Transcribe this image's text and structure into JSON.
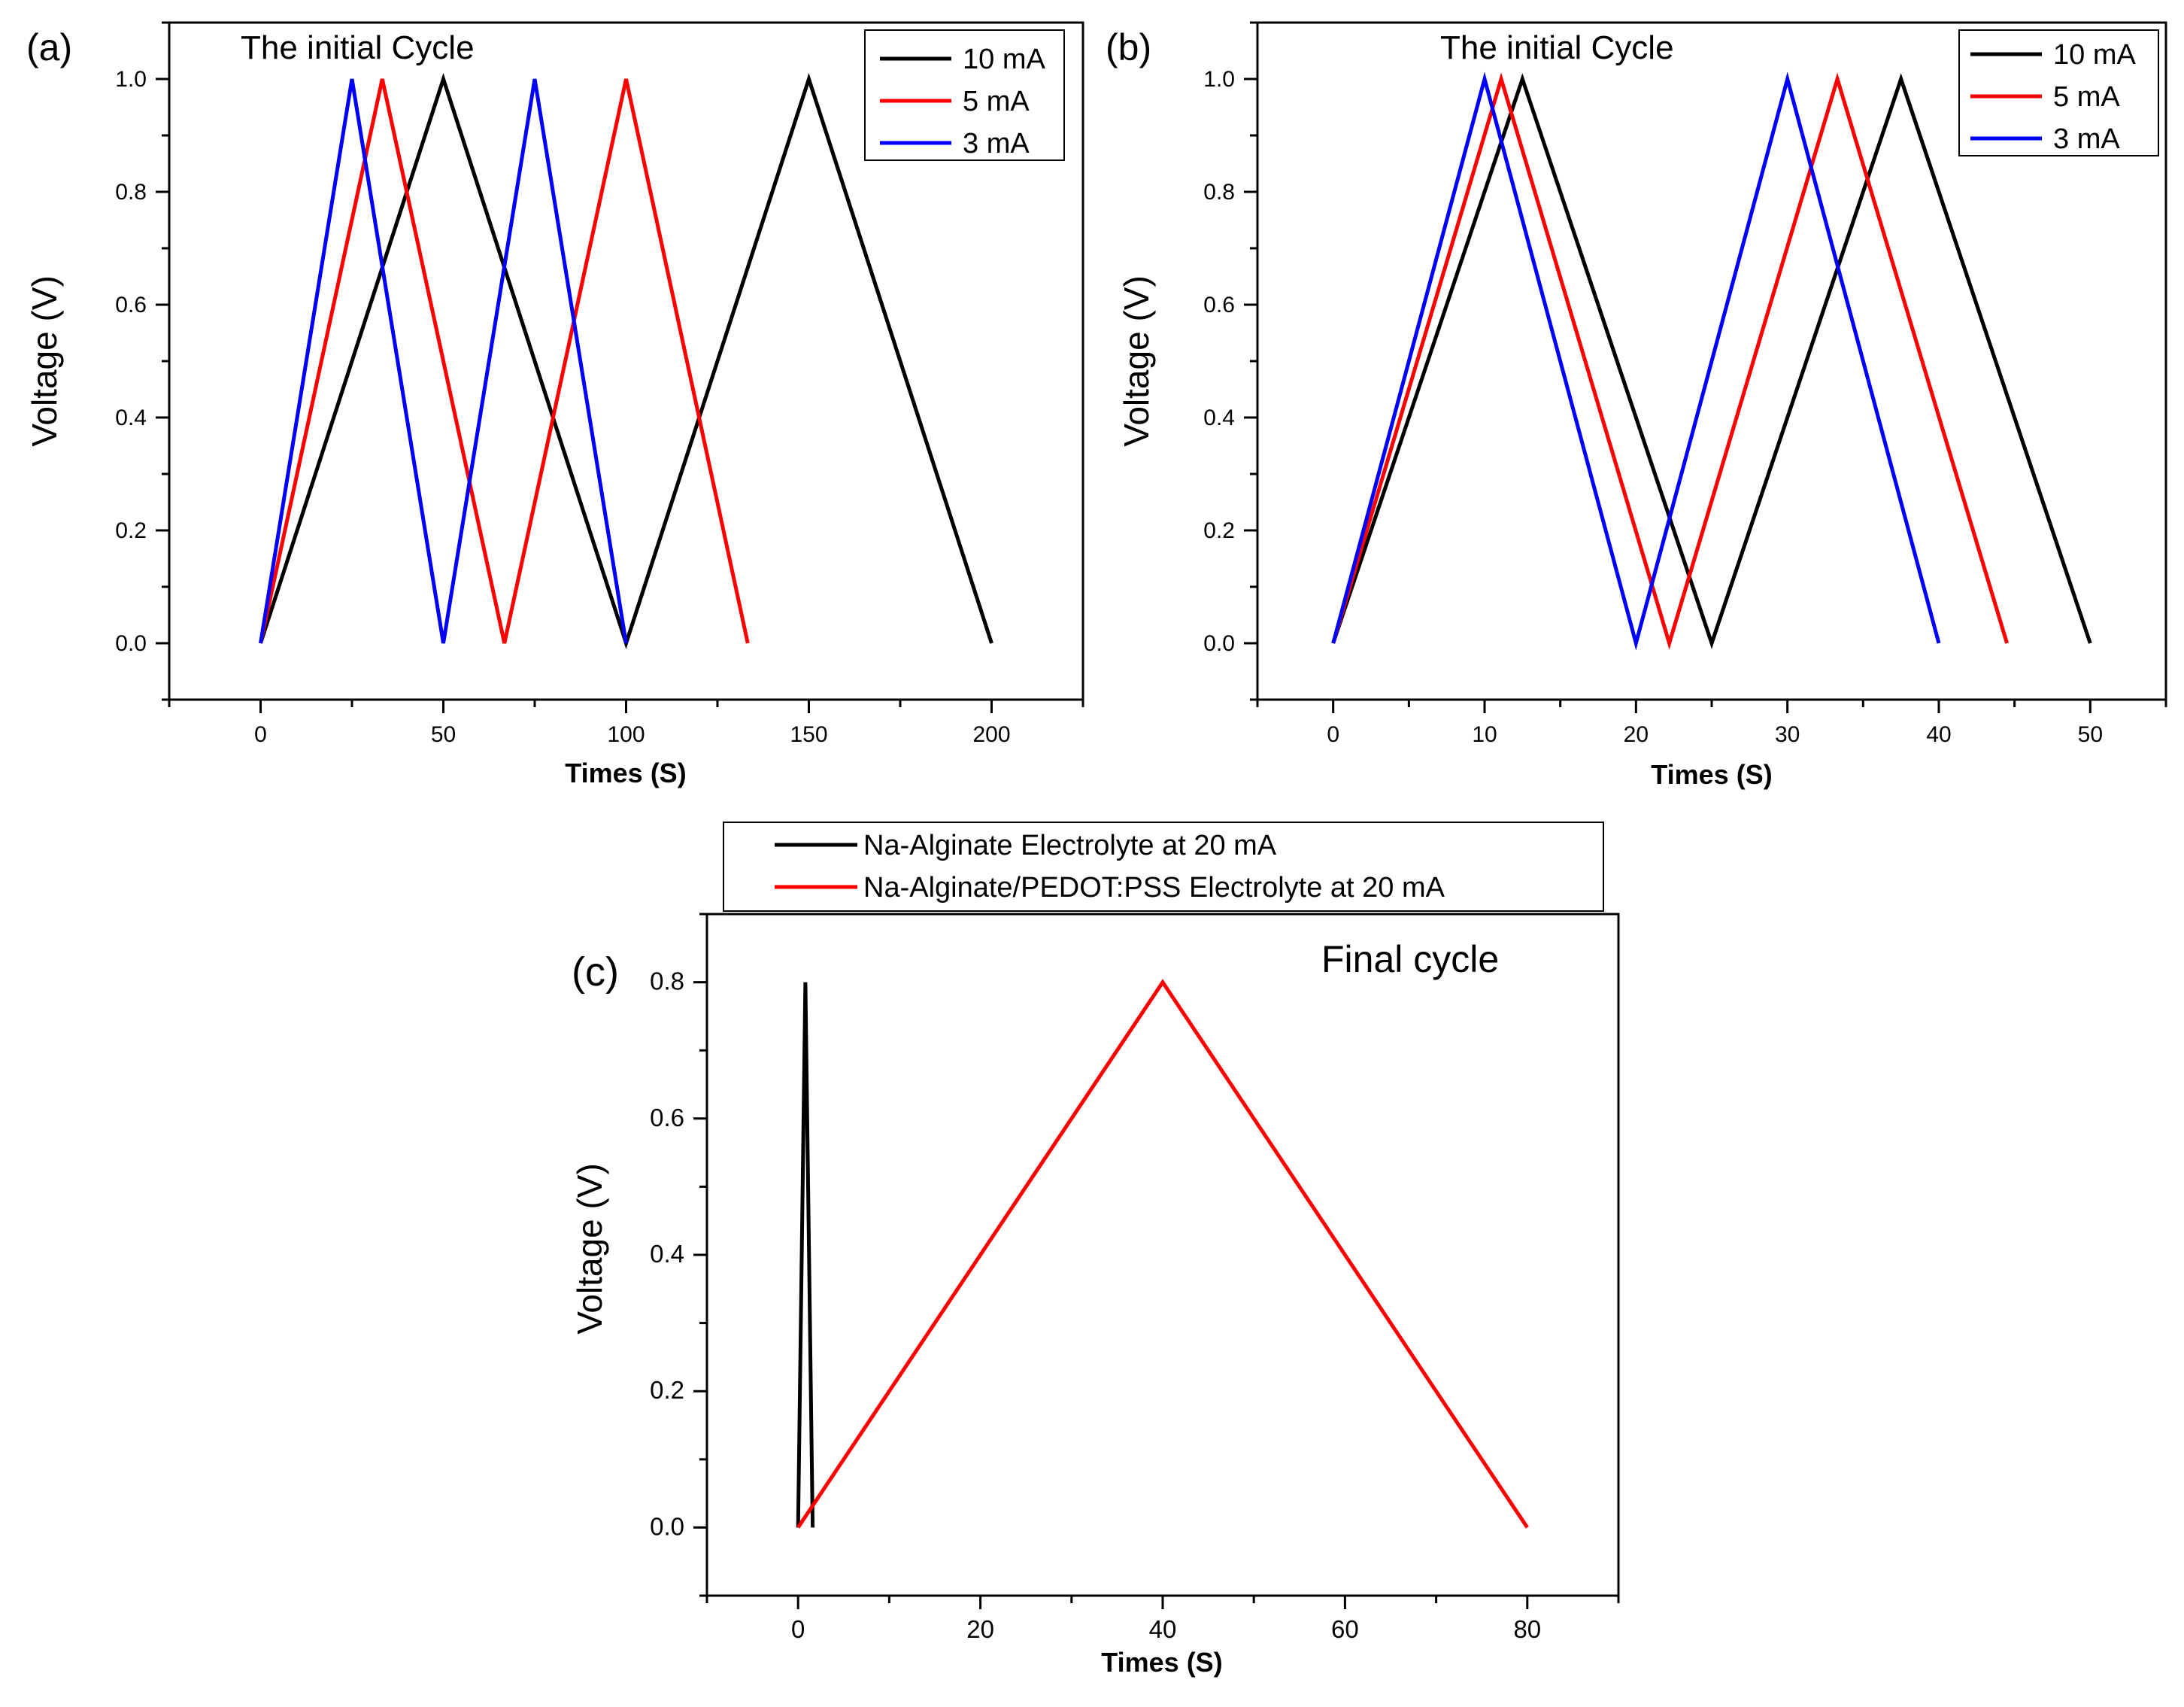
{
  "chart_data": [
    {
      "type": "line",
      "panel_label": "(a)",
      "title": "The initial Cycle",
      "xlabel": "Times (S)",
      "ylabel": "Voltage (V)",
      "xlim": [
        -25,
        225
      ],
      "ylim": [
        -0.1,
        1.1
      ],
      "xticks": [
        0,
        50,
        100,
        150,
        200
      ],
      "yticks": [
        0.0,
        0.2,
        0.4,
        0.6,
        0.8,
        1.0
      ],
      "legend_position": "top-right",
      "series": [
        {
          "name": "10 mA",
          "color": "#000000",
          "x": [
            0,
            50,
            100,
            150,
            200
          ],
          "y": [
            0,
            1,
            0,
            1,
            0
          ]
        },
        {
          "name": "5 mA",
          "color": "#ff0000",
          "x": [
            0,
            33.3,
            66.7,
            100,
            133.3
          ],
          "y": [
            0,
            1,
            0,
            1,
            0
          ]
        },
        {
          "name": "3 mA",
          "color": "#0000ff",
          "x": [
            0,
            25,
            50,
            75,
            100
          ],
          "y": [
            0,
            1,
            0,
            1,
            0
          ]
        }
      ]
    },
    {
      "type": "line",
      "panel_label": "(b)",
      "title": "The initial Cycle",
      "xlabel": "Times (S)",
      "ylabel": "Voltage (V)",
      "xlim": [
        -5,
        55
      ],
      "ylim": [
        -0.1,
        1.1
      ],
      "xticks": [
        0,
        10,
        20,
        30,
        40,
        50
      ],
      "yticks": [
        0.0,
        0.2,
        0.4,
        0.6,
        0.8,
        1.0
      ],
      "legend_position": "top-right",
      "series": [
        {
          "name": "10 mA",
          "color": "#000000",
          "x": [
            0,
            12.5,
            25,
            37.5,
            50
          ],
          "y": [
            0,
            1,
            0,
            1,
            0
          ]
        },
        {
          "name": "5 mA",
          "color": "#ff0000",
          "x": [
            0,
            11.1,
            22.2,
            33.3,
            44.5
          ],
          "y": [
            0,
            1,
            0,
            1,
            0
          ]
        },
        {
          "name": "3 mA",
          "color": "#0000ff",
          "x": [
            0,
            10,
            20,
            30,
            40
          ],
          "y": [
            0,
            1,
            0,
            1,
            0
          ]
        }
      ]
    },
    {
      "type": "line",
      "panel_label": "(c)",
      "title": "Final cycle",
      "xlabel": "Times (S)",
      "ylabel": "Voltage (V)",
      "xlim": [
        -10,
        90
      ],
      "ylim": [
        -0.1,
        0.9
      ],
      "xticks": [
        0,
        20,
        40,
        60,
        80
      ],
      "yticks": [
        0.0,
        0.2,
        0.4,
        0.6,
        0.8
      ],
      "legend_position": "above-plot",
      "series": [
        {
          "name": "Na-Alginate Electrolyte at 20 mA",
          "color": "#000000",
          "x": [
            0,
            0.8,
            1.6
          ],
          "y": [
            0,
            0.8,
            0
          ]
        },
        {
          "name": "Na-Alginate/PEDOT:PSS Electrolyte at 20 mA",
          "color": "#ff0000",
          "x": [
            0,
            40,
            80
          ],
          "y": [
            0,
            0.8,
            0
          ]
        }
      ]
    }
  ]
}
